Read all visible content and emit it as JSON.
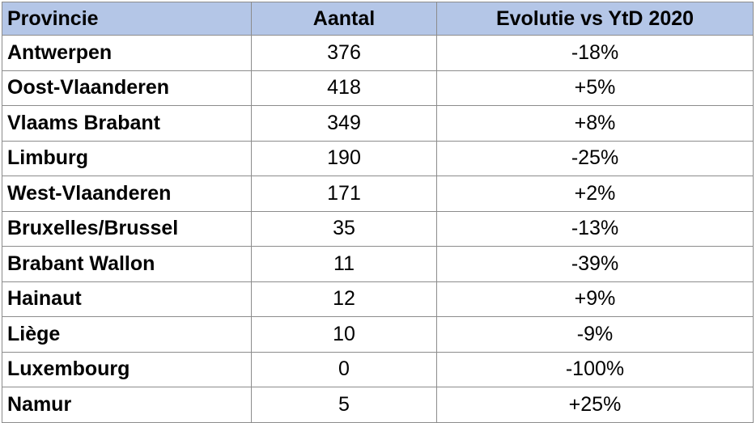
{
  "chart_data": {
    "type": "table",
    "columns": [
      "Provincie",
      "Aantal",
      "Evolutie vs YtD 2020"
    ],
    "rows": [
      {
        "provincie": "Antwerpen",
        "aantal": 376,
        "aantal_label": "376",
        "evolutie": "-18%"
      },
      {
        "provincie": "Oost-Vlaanderen",
        "aantal": 418,
        "aantal_label": "418",
        "evolutie": "+5%"
      },
      {
        "provincie": "Vlaams Brabant",
        "aantal": 349,
        "aantal_label": "349",
        "evolutie": "+8%"
      },
      {
        "provincie": "Limburg",
        "aantal": 190,
        "aantal_label": "190",
        "evolutie": "-25%"
      },
      {
        "provincie": "West-Vlaanderen",
        "aantal": 171,
        "aantal_label": "171",
        "evolutie": "+2%"
      },
      {
        "provincie": "Bruxelles/Brussel",
        "aantal": 35,
        "aantal_label": "35",
        "evolutie": "-13%"
      },
      {
        "provincie": "Brabant Wallon",
        "aantal": 11,
        "aantal_label": "11",
        "evolutie": "-39%"
      },
      {
        "provincie": "Hainaut",
        "aantal": 12,
        "aantal_label": "12",
        "evolutie": "+9%"
      },
      {
        "provincie": "Liège",
        "aantal": 10,
        "aantal_label": "10",
        "evolutie": "-9%"
      },
      {
        "provincie": "Luxembourg",
        "aantal": 0,
        "aantal_label": "0",
        "evolutie": "-100%"
      },
      {
        "provincie": "Namur",
        "aantal": 5,
        "aantal_label": "5",
        "evolutie": "+25%"
      }
    ],
    "header_color": "#b4c6e7",
    "border_color": "#8c8c8c"
  }
}
